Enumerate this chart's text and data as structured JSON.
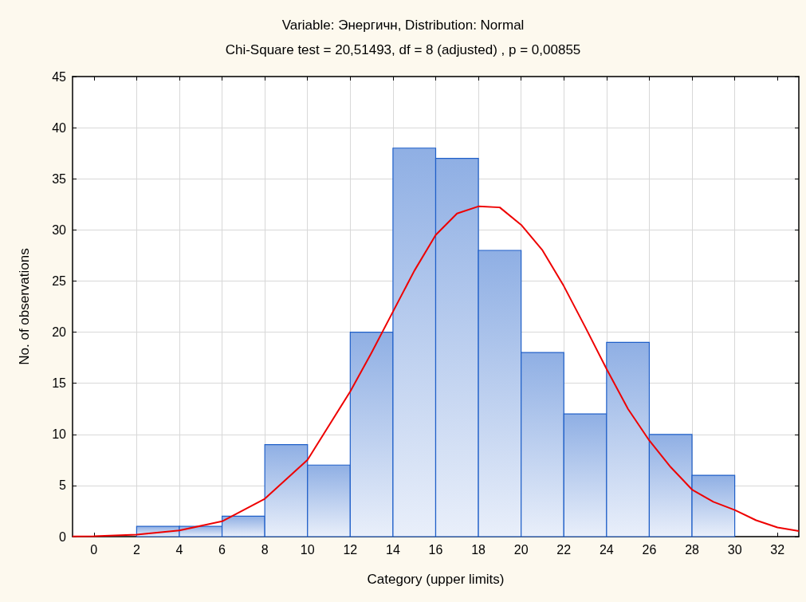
{
  "chart_data": {
    "type": "histogram",
    "title": "Variable: Энергичн, Distribution: Normal",
    "subtitle": "Chi-Square test = 20,51493, df = 8 (adjusted) , p = 0,00855",
    "xlabel": "Category (upper limits)",
    "ylabel": "No. of observations",
    "bins": [
      2,
      4,
      6,
      8,
      10,
      12,
      14,
      16,
      18,
      20,
      22,
      24,
      26,
      28,
      30
    ],
    "values": [
      1,
      1,
      2,
      9,
      7,
      20,
      38,
      37,
      28,
      18,
      12,
      19,
      10,
      6
    ],
    "color": "#1f5fc8",
    "series": [
      {
        "type": "line",
        "color": "#ee0000",
        "x": [
          -1,
          0,
          2,
          4,
          6,
          8,
          10,
          12,
          13,
          14,
          15,
          16,
          17,
          18,
          19,
          20,
          21,
          22,
          23,
          24,
          25,
          26,
          27,
          28,
          29,
          30,
          31,
          32,
          33
        ],
        "values": [
          0.02,
          0.04,
          0.2,
          0.6,
          1.5,
          3.7,
          7.5,
          14.2,
          18,
          22,
          26,
          29.5,
          31.6,
          32.3,
          32.2,
          30.5,
          28,
          24.5,
          20.5,
          16.4,
          12.5,
          9.4,
          6.8,
          4.6,
          3.4,
          2.6,
          1.6,
          0.9,
          0.55
        ]
      }
    ],
    "xlim": [
      -1,
      33
    ],
    "xticks": [
      0,
      2,
      4,
      6,
      8,
      10,
      12,
      14,
      16,
      18,
      20,
      22,
      24,
      26,
      28,
      30,
      32
    ],
    "ylim": [
      0,
      45
    ],
    "yticks": [
      0,
      5,
      10,
      15,
      20,
      25,
      30,
      35,
      40,
      45
    ],
    "grid": true,
    "marker": "none",
    "line_style": "solid"
  }
}
